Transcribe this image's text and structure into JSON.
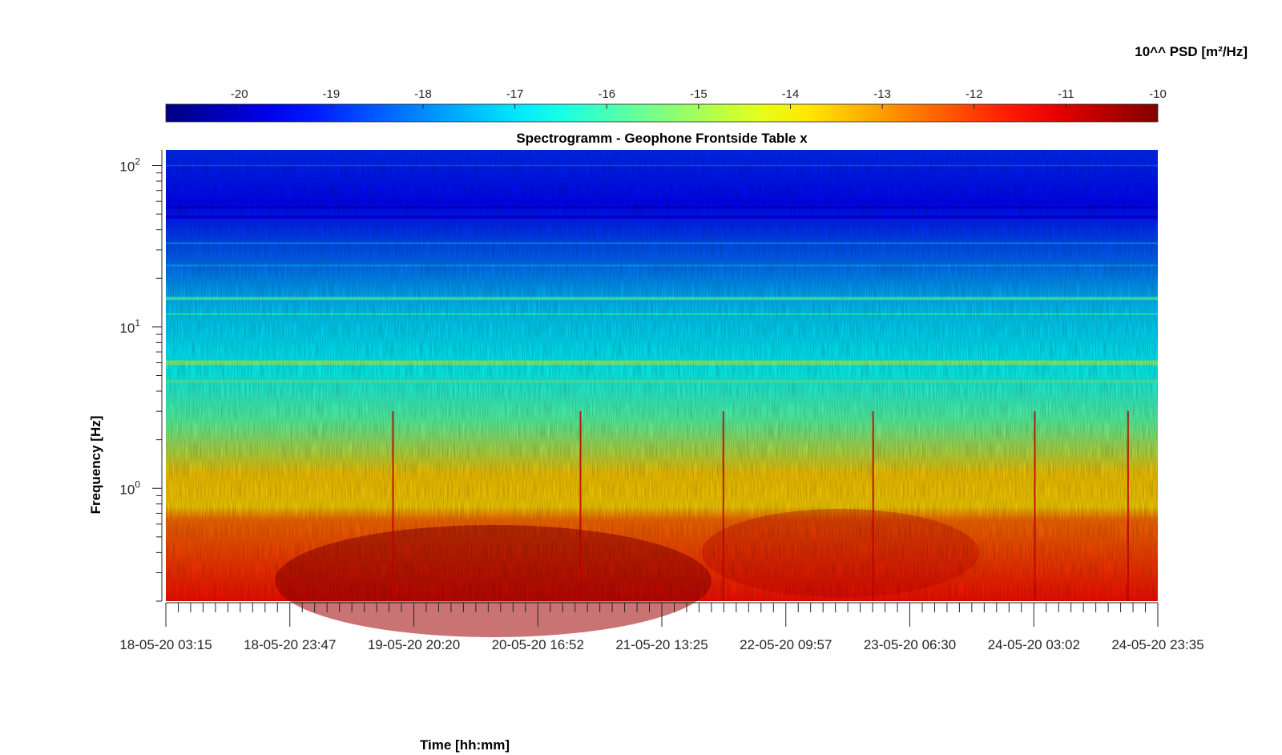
{
  "chart_data": {
    "type": "heatmap",
    "title": "Spectrogramm - Geophone Frontside Table x",
    "xlabel": "Time [hh:mm]",
    "ylabel": "Frequency [Hz]",
    "colorbar": {
      "label": "10^^ PSD [m²/Hz]",
      "range": [
        -20.8,
        -10
      ],
      "ticks": [
        -20,
        -19,
        -18,
        -17,
        -16,
        -15,
        -14,
        -13,
        -12,
        -11,
        -10
      ],
      "colormap": "jet",
      "location": "top"
    },
    "x_ticks": [
      "18-05-20 03:15",
      "18-05-20 23:47",
      "19-05-20 20:20",
      "20-05-20 16:52",
      "21-05-20 13:25",
      "22-05-20 09:57",
      "23-05-20 06:30",
      "24-05-20 03:02",
      "24-05-20 23:35"
    ],
    "y_scale": "log",
    "ylim": [
      0.2,
      125
    ],
    "y_ticks": [
      {
        "value": 1,
        "base": "10",
        "exp": "0"
      },
      {
        "value": 10,
        "base": "10",
        "exp": "1"
      },
      {
        "value": 100,
        "base": "10",
        "exp": "2"
      }
    ],
    "description_values": {
      "low_freq_level_range": [
        -12.5,
        -10.5
      ],
      "mid_freq_level_range": [
        -15,
        -13.5
      ],
      "high_freq_level_range": [
        -20,
        -17
      ]
    }
  }
}
